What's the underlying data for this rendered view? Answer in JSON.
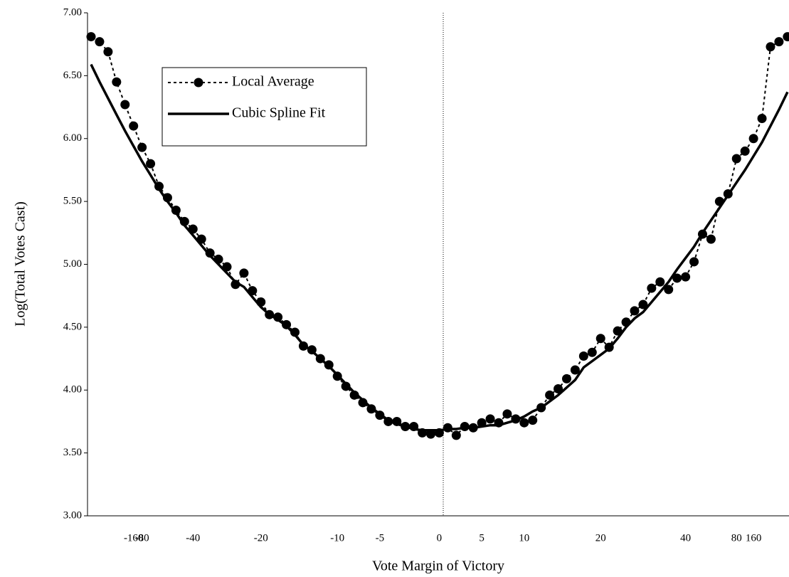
{
  "chart_data": {
    "type": "line",
    "x_label": "Vote Margin of Victory",
    "y_label": "Log(Total Votes Cast)",
    "categories": [
      null,
      null,
      null,
      null,
      null,
      "-160",
      "-80",
      null,
      null,
      null,
      null,
      null,
      "-40",
      null,
      null,
      null,
      null,
      null,
      null,
      null,
      "-20",
      null,
      null,
      null,
      null,
      null,
      null,
      null,
      null,
      "-10",
      null,
      null,
      null,
      null,
      "-5",
      null,
      null,
      null,
      null,
      null,
      null,
      "0",
      null,
      null,
      null,
      null,
      "5",
      null,
      null,
      null,
      null,
      "10",
      null,
      null,
      null,
      null,
      null,
      null,
      null,
      null,
      "20",
      null,
      null,
      null,
      null,
      null,
      null,
      null,
      null,
      null,
      "40",
      null,
      null,
      null,
      null,
      null,
      "80",
      null,
      "160",
      null,
      null,
      null,
      null
    ],
    "series": [
      {
        "name": "Local Average",
        "color": "#000000",
        "style": "dashed-markers",
        "values": [
          6.81,
          6.77,
          6.69,
          6.45,
          6.27,
          6.1,
          5.93,
          5.8,
          5.62,
          5.53,
          5.43,
          5.34,
          5.28,
          5.2,
          5.09,
          5.04,
          4.98,
          4.84,
          4.93,
          4.79,
          4.7,
          4.6,
          4.58,
          4.52,
          4.46,
          4.35,
          4.32,
          4.25,
          4.2,
          4.11,
          4.03,
          3.96,
          3.9,
          3.85,
          3.8,
          3.75,
          3.75,
          3.71,
          3.71,
          3.66,
          3.65,
          3.66,
          3.7,
          3.64,
          3.71,
          3.7,
          3.74,
          3.77,
          3.74,
          3.81,
          3.77,
          3.74,
          3.76,
          3.86,
          3.96,
          4.01,
          4.09,
          4.16,
          4.27,
          4.3,
          4.41,
          4.34,
          4.47,
          4.54,
          4.63,
          4.68,
          4.81,
          4.86,
          4.8,
          4.89,
          4.9,
          5.02,
          5.24,
          5.2,
          5.5,
          5.56,
          5.84,
          5.9,
          6.0,
          6.16,
          6.73,
          6.77,
          6.81
        ]
      },
      {
        "name": "Cubic Spline Fit",
        "color": "#000000",
        "style": "solid",
        "values": [
          6.59,
          6.45,
          6.32,
          6.19,
          6.06,
          5.94,
          5.82,
          5.71,
          5.6,
          5.5,
          5.41,
          5.31,
          5.23,
          5.15,
          5.07,
          5.0,
          4.93,
          4.86,
          4.82,
          4.74,
          4.66,
          4.6,
          4.56,
          4.51,
          4.44,
          4.36,
          4.31,
          4.25,
          4.19,
          4.12,
          4.05,
          3.98,
          3.92,
          3.86,
          3.81,
          3.76,
          3.73,
          3.71,
          3.69,
          3.68,
          3.68,
          3.68,
          3.69,
          3.69,
          3.7,
          3.7,
          3.71,
          3.72,
          3.72,
          3.74,
          3.76,
          3.79,
          3.83,
          3.86,
          3.91,
          3.96,
          4.02,
          4.08,
          4.18,
          4.23,
          4.28,
          4.33,
          4.41,
          4.5,
          4.57,
          4.62,
          4.7,
          4.78,
          4.86,
          4.96,
          5.05,
          5.14,
          5.25,
          5.35,
          5.45,
          5.55,
          5.65,
          5.75,
          5.86,
          5.97,
          6.1,
          6.23,
          6.37
        ]
      }
    ],
    "ylim": [
      3.0,
      7.0
    ],
    "yticks": [
      {
        "value": 3.0,
        "label": "3.00"
      },
      {
        "value": 3.5,
        "label": "3.50"
      },
      {
        "value": 4.0,
        "label": "4.00"
      },
      {
        "value": 4.5,
        "label": "4.50"
      },
      {
        "value": 5.0,
        "label": "5.00"
      },
      {
        "value": 5.5,
        "label": "5.50"
      },
      {
        "value": 6.0,
        "label": "6.00"
      },
      {
        "value": 6.5,
        "label": "6.50"
      },
      {
        "value": 7.0,
        "label": "7.00"
      }
    ],
    "legend": "upper-left",
    "grid": false
  }
}
